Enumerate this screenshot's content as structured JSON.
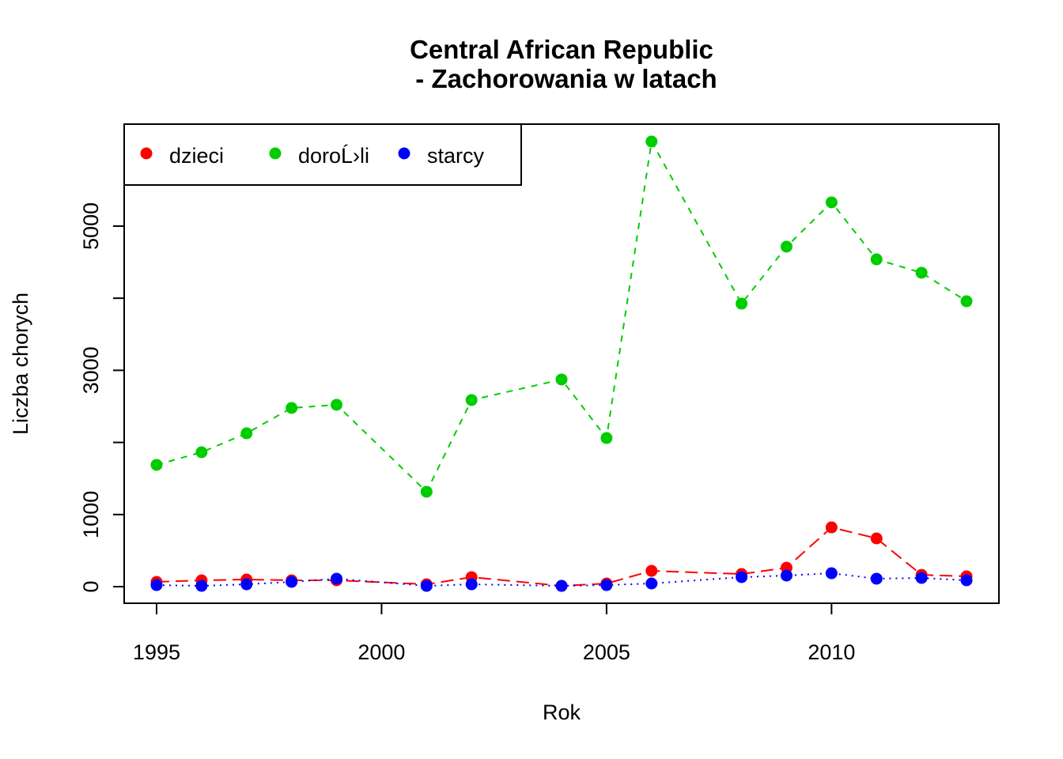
{
  "chart_data": {
    "type": "line",
    "title": [
      "Central African Republic",
      "- Zachorowania w latach"
    ],
    "x_label": "Rok",
    "y_label": "Liczba chorych",
    "x": [
      1995,
      1996,
      1997,
      1998,
      1999,
      2001,
      2002,
      2004,
      2005,
      2006,
      2008,
      2009,
      2010,
      2011,
      2012,
      2013
    ],
    "series": [
      {
        "name": "dzieci",
        "color": "#ff0000",
        "linetype": "dashed",
        "values": [
          66,
          88,
          99,
          88,
          88,
          33,
          132,
          11,
          44,
          219,
          175,
          263,
          822,
          669,
          164,
          143
        ]
      },
      {
        "name": "doroĹ›li",
        "color": "#00cd00",
        "linetype": "shortdash",
        "values": [
          1689,
          1864,
          2127,
          2478,
          2522,
          1316,
          2588,
          2873,
          2061,
          6173,
          3925,
          4715,
          5329,
          4539,
          4353,
          3958
        ]
      },
      {
        "name": "starcy",
        "color": "#0000ff",
        "linetype": "dotted",
        "values": [
          22,
          11,
          33,
          66,
          110,
          11,
          33,
          11,
          22,
          44,
          132,
          154,
          186,
          110,
          121,
          88
        ]
      }
    ],
    "xlim": [
      1994.28,
      2013.72
    ],
    "xticks": [
      1995,
      2000,
      2005,
      2010
    ],
    "ylim": [
      -230,
      6414
    ],
    "yticks": [
      0,
      1000,
      2000,
      3000,
      4000,
      5000
    ],
    "legend": "top-left"
  }
}
